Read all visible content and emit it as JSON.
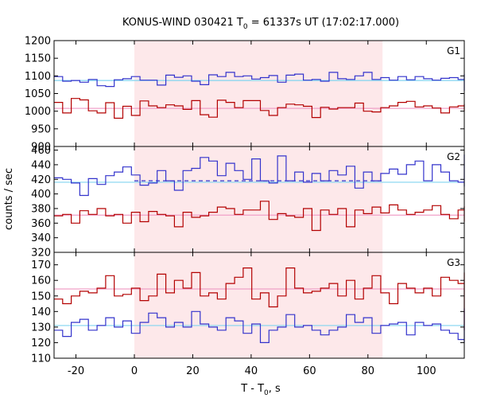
{
  "chart_data": {
    "type": "line",
    "title": "KONUS-WIND 030421 T",
    "title_sub": "0",
    "title_rest": " = 61337s UT (17:02:17.000)",
    "xlabel": "T - T",
    "xlabel_sub": "0",
    "xlabel_rest": ", s",
    "ylabel": "counts / sec",
    "x_range": [
      -27.5,
      113
    ],
    "x_ticks": [
      -20,
      0,
      20,
      40,
      60,
      80,
      100
    ],
    "highlight_interval": [
      0,
      85
    ],
    "colors": {
      "highlight": "#fde8ea",
      "upper_series": "#3333cc",
      "lower_series": "#b30000",
      "upper_level": "#80d4f0",
      "lower_level": "#f0a0c8",
      "frame": "#000000"
    },
    "panels": [
      {
        "label": "G1",
        "ylim": [
          900,
          1200
        ],
        "y_ticks": [
          900,
          950,
          1000,
          1050,
          1100,
          1150,
          1200
        ],
        "levels": [
          {
            "value": 1087,
            "color": "upper_level",
            "style": "solid"
          },
          {
            "value": 1008,
            "color": "lower_level",
            "style": "solid"
          }
        ],
        "series": [
          {
            "color": "upper_series",
            "bin_width": 2.944,
            "x0": -27.5,
            "values": [
              1098,
              1085,
              1087,
              1082,
              1090,
              1072,
              1070,
              1089,
              1092,
              1098,
              1088,
              1088,
              1074,
              1102,
              1096,
              1100,
              1085,
              1075,
              1103,
              1098,
              1110,
              1098,
              1100,
              1091,
              1095,
              1101,
              1082,
              1102,
              1105,
              1088,
              1090,
              1085,
              1110,
              1092,
              1090,
              1100,
              1110,
              1090,
              1095,
              1088,
              1098,
              1089,
              1098,
              1092,
              1088,
              1093,
              1095,
              1090,
              1082,
              1082,
              1076,
              1096,
              1105,
              1088,
              1062,
              1062,
              1082,
              1060,
              1065,
              1083,
              1090,
              1068,
              1070,
              1085,
              1075,
              1064,
              1087,
              1093,
              1080,
              1067,
              1058,
              1086,
              1063
            ]
          },
          {
            "color": "lower_series",
            "bin_width": 2.944,
            "x0": -27.5,
            "values": [
              1025,
              995,
              1036,
              1032,
              1001,
              995,
              1024,
              980,
              1014,
              988,
              1029,
              1015,
              1010,
              1018,
              1015,
              1005,
              1030,
              990,
              983,
              1031,
              1025,
              1010,
              1030,
              1030,
              1002,
              988,
              1010,
              1020,
              1018,
              1014,
              982,
              1011,
              1006,
              1010,
              1010,
              1023,
              1000,
              998,
              1010,
              1015,
              1025,
              1028,
              1012,
              1015,
              1009,
              995,
              1012,
              1015,
              1000,
              1015,
              1008,
              1008,
              1020,
              1018,
              1010,
              1012,
              1018,
              1003,
              1009,
              1019,
              1010,
              1004,
              1014,
              1015,
              1012,
              1006,
              1001,
              1012,
              1008,
              1011,
              1004,
              1010,
              1006,
              1000
            ]
          }
        ]
      },
      {
        "label": "G2",
        "ylim": [
          320,
          465
        ],
        "y_ticks": [
          320,
          340,
          360,
          380,
          400,
          420,
          440,
          460
        ],
        "levels": [
          {
            "value": 416,
            "color": "upper_level",
            "style": "solid"
          },
          {
            "value": 418,
            "color": "upper_series",
            "style": "dashed",
            "from": 0,
            "to": 85
          },
          {
            "value": 371,
            "color": "lower_level",
            "style": "solid"
          }
        ],
        "series": [
          {
            "color": "upper_series",
            "bin_width": 2.944,
            "x0": -27.5,
            "values": [
              422,
              420,
              415,
              398,
              421,
              413,
              425,
              430,
              437,
              426,
              412,
              415,
              432,
              418,
              405,
              432,
              435,
              450,
              445,
              425,
              442,
              432,
              420,
              448,
              418,
              415,
              452,
              418,
              430,
              416,
              428,
              418,
              432,
              426,
              438,
              408,
              430,
              418,
              428,
              434,
              427,
              440,
              445,
              418,
              440,
              430,
              418,
              416,
              454,
              418,
              430,
              418,
              412,
              430,
              418,
              420,
              415,
              412,
              414,
              416,
              420,
              418,
              422,
              420,
              418,
              420,
              410,
              415,
              420,
              420,
              418,
              416,
              420
            ]
          },
          {
            "color": "lower_series",
            "bin_width": 2.944,
            "x0": -27.5,
            "values": [
              370,
              372,
              360,
              377,
              372,
              380,
              370,
              372,
              360,
              375,
              362,
              376,
              372,
              370,
              355,
              375,
              368,
              370,
              375,
              382,
              380,
              372,
              378,
              378,
              390,
              365,
              373,
              370,
              368,
              380,
              350,
              378,
              372,
              380,
              355,
              378,
              373,
              382,
              374,
              385,
              378,
              372,
              375,
              378,
              384,
              372,
              366,
              378,
              383,
              375,
              378,
              380,
              374,
              372,
              374,
              376,
              371,
              362,
              368,
              374,
              370,
              374,
              368,
              371,
              373,
              376,
              368,
              372,
              374,
              370,
              368,
              372,
              370
            ]
          }
        ]
      },
      {
        "label": "G3",
        "ylim": [
          110,
          178
        ],
        "y_ticks": [
          110,
          120,
          130,
          140,
          150,
          160,
          170
        ],
        "levels": [
          {
            "value": 154.5,
            "color": "lower_level",
            "style": "solid"
          },
          {
            "value": 131,
            "color": "upper_level",
            "style": "solid"
          }
        ],
        "series": [
          {
            "color": "lower_series",
            "bin_width": 2.944,
            "x0": -27.5,
            "values": [
              148,
              145,
              150,
              153,
              152,
              155,
              163,
              150,
              151,
              155,
              147,
              150,
              164,
              152,
              160,
              155,
              165,
              150,
              152,
              148,
              158,
              162,
              168,
              148,
              152,
              143,
              150,
              168,
              155,
              152,
              153,
              155,
              158,
              150,
              160,
              148,
              155,
              163,
              152,
              145,
              158,
              155,
              152,
              155,
              150,
              162,
              160,
              158,
              151,
              153,
              148,
              155,
              160,
              152,
              128,
              158,
              128,
              155,
              148,
              135,
              152,
              150,
              160,
              155,
              162,
              150,
              153,
              157,
              155,
              165,
              148,
              150,
              155
            ]
          },
          {
            "color": "upper_series",
            "bin_width": 2.944,
            "x0": -27.5,
            "values": [
              128,
              124,
              133,
              135,
              128,
              131,
              136,
              130,
              134,
              126,
              133,
              139,
              136,
              130,
              133,
              130,
              140,
              132,
              130,
              128,
              136,
              134,
              126,
              132,
              120,
              128,
              130,
              138,
              130,
              131,
              128,
              125,
              128,
              130,
              138,
              133,
              136,
              126,
              131,
              132,
              133,
              125,
              133,
              131,
              132,
              128,
              126,
              122,
              132,
              128,
              133,
              127,
              135,
              125,
              131,
              132,
              138,
              122,
              120,
              134,
              128,
              138,
              140,
              128,
              130,
              142,
              126,
              138,
              136,
              124,
              127,
              130,
              126
            ]
          }
        ]
      }
    ]
  }
}
